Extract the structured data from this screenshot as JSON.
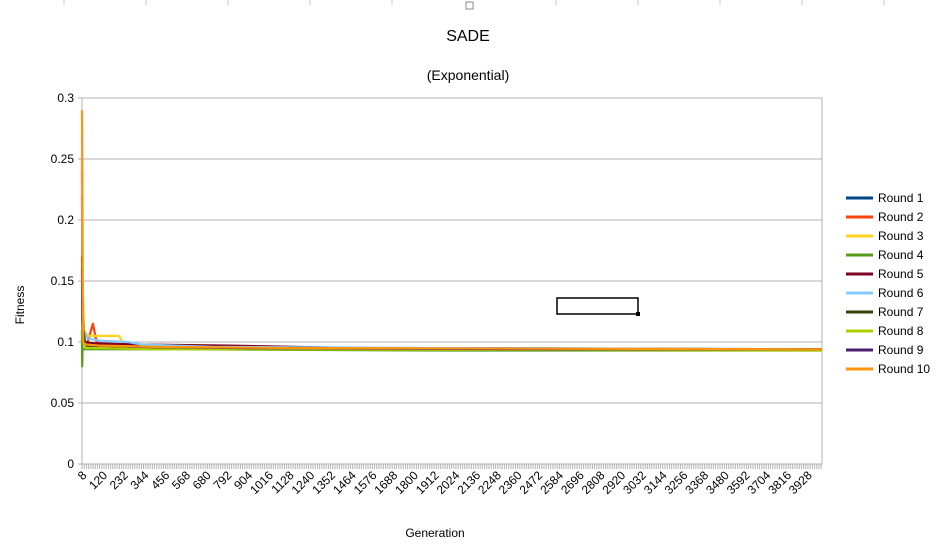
{
  "chart_data": {
    "type": "line",
    "title": "SADE",
    "subtitle": "(Exponential)",
    "xlabel": "Generation",
    "ylabel": "Fitness",
    "ylim": [
      0,
      0.3
    ],
    "yticks": [
      "0",
      "0.05",
      "0.1",
      "0.15",
      "0.2",
      "0.25",
      "0.3"
    ],
    "xlim": [
      1,
      4000
    ],
    "xticks": [
      8,
      120,
      232,
      344,
      456,
      568,
      680,
      792,
      904,
      1016,
      1128,
      1240,
      1352,
      1464,
      1576,
      1688,
      1800,
      1912,
      2024,
      2136,
      2248,
      2360,
      2472,
      2584,
      2696,
      2808,
      2920,
      3032,
      3144,
      3256,
      3368,
      3480,
      3592,
      3704,
      3816,
      3928
    ],
    "grid": true,
    "legend_position": "right",
    "series": [
      {
        "name": "Round 1",
        "color": "#004586",
        "x": [
          1,
          3,
          5,
          8,
          15,
          40,
          120,
          400,
          1000,
          2000,
          4000
        ],
        "y": [
          0.22,
          0.15,
          0.11,
          0.1,
          0.098,
          0.097,
          0.097,
          0.096,
          0.095,
          0.095,
          0.094
        ]
      },
      {
        "name": "Round 2",
        "color": "#ff420e",
        "x": [
          1,
          3,
          6,
          10,
          30,
          60,
          80,
          100,
          300,
          1000,
          2000,
          4000
        ],
        "y": [
          0.25,
          0.17,
          0.12,
          0.1,
          0.099,
          0.115,
          0.1,
          0.098,
          0.097,
          0.095,
          0.094,
          0.094
        ]
      },
      {
        "name": "Round 3",
        "color": "#ffd320",
        "x": [
          1,
          3,
          6,
          12,
          30,
          100,
          200,
          230,
          500,
          1500,
          4000
        ],
        "y": [
          0.2,
          0.25,
          0.14,
          0.11,
          0.105,
          0.105,
          0.105,
          0.098,
          0.097,
          0.095,
          0.094
        ]
      },
      {
        "name": "Round 4",
        "color": "#579d1c",
        "x": [
          1,
          2,
          4,
          8,
          20,
          100,
          500,
          2000,
          4000
        ],
        "y": [
          0.11,
          0.08,
          0.095,
          0.094,
          0.094,
          0.094,
          0.094,
          0.093,
          0.093
        ]
      },
      {
        "name": "Round 5",
        "color": "#7e0021",
        "x": [
          1,
          3,
          6,
          15,
          60,
          300,
          800,
          1500,
          4000
        ],
        "y": [
          0.24,
          0.12,
          0.1,
          0.1,
          0.099,
          0.098,
          0.097,
          0.095,
          0.094
        ]
      },
      {
        "name": "Round 6",
        "color": "#83caff",
        "x": [
          1,
          3,
          8,
          30,
          100,
          250,
          320,
          700,
          2000,
          4000
        ],
        "y": [
          0.27,
          0.14,
          0.11,
          0.103,
          0.101,
          0.1,
          0.098,
          0.096,
          0.095,
          0.094
        ]
      },
      {
        "name": "Round 7",
        "color": "#314004",
        "x": [
          1,
          3,
          8,
          20,
          60,
          200,
          600,
          2000,
          4000
        ],
        "y": [
          0.17,
          0.135,
          0.11,
          0.097,
          0.097,
          0.096,
          0.095,
          0.094,
          0.094
        ]
      },
      {
        "name": "Round 8",
        "color": "#aecf00",
        "x": [
          1,
          3,
          6,
          20,
          100,
          400,
          1200,
          4000
        ],
        "y": [
          0.13,
          0.11,
          0.1,
          0.095,
          0.095,
          0.094,
          0.094,
          0.093
        ]
      },
      {
        "name": "Round 9",
        "color": "#4b1f6f",
        "x": [
          1,
          3,
          8,
          25,
          100,
          300,
          900,
          2500,
          4000
        ],
        "y": [
          0.16,
          0.12,
          0.1,
          0.098,
          0.097,
          0.096,
          0.095,
          0.094,
          0.094
        ]
      },
      {
        "name": "Round 10",
        "color": "#ff950e",
        "x": [
          1,
          2,
          4,
          8,
          20,
          100,
          400,
          1200,
          4000
        ],
        "y": [
          0.29,
          0.26,
          0.15,
          0.1,
          0.098,
          0.097,
          0.096,
          0.095,
          0.094
        ]
      }
    ]
  }
}
